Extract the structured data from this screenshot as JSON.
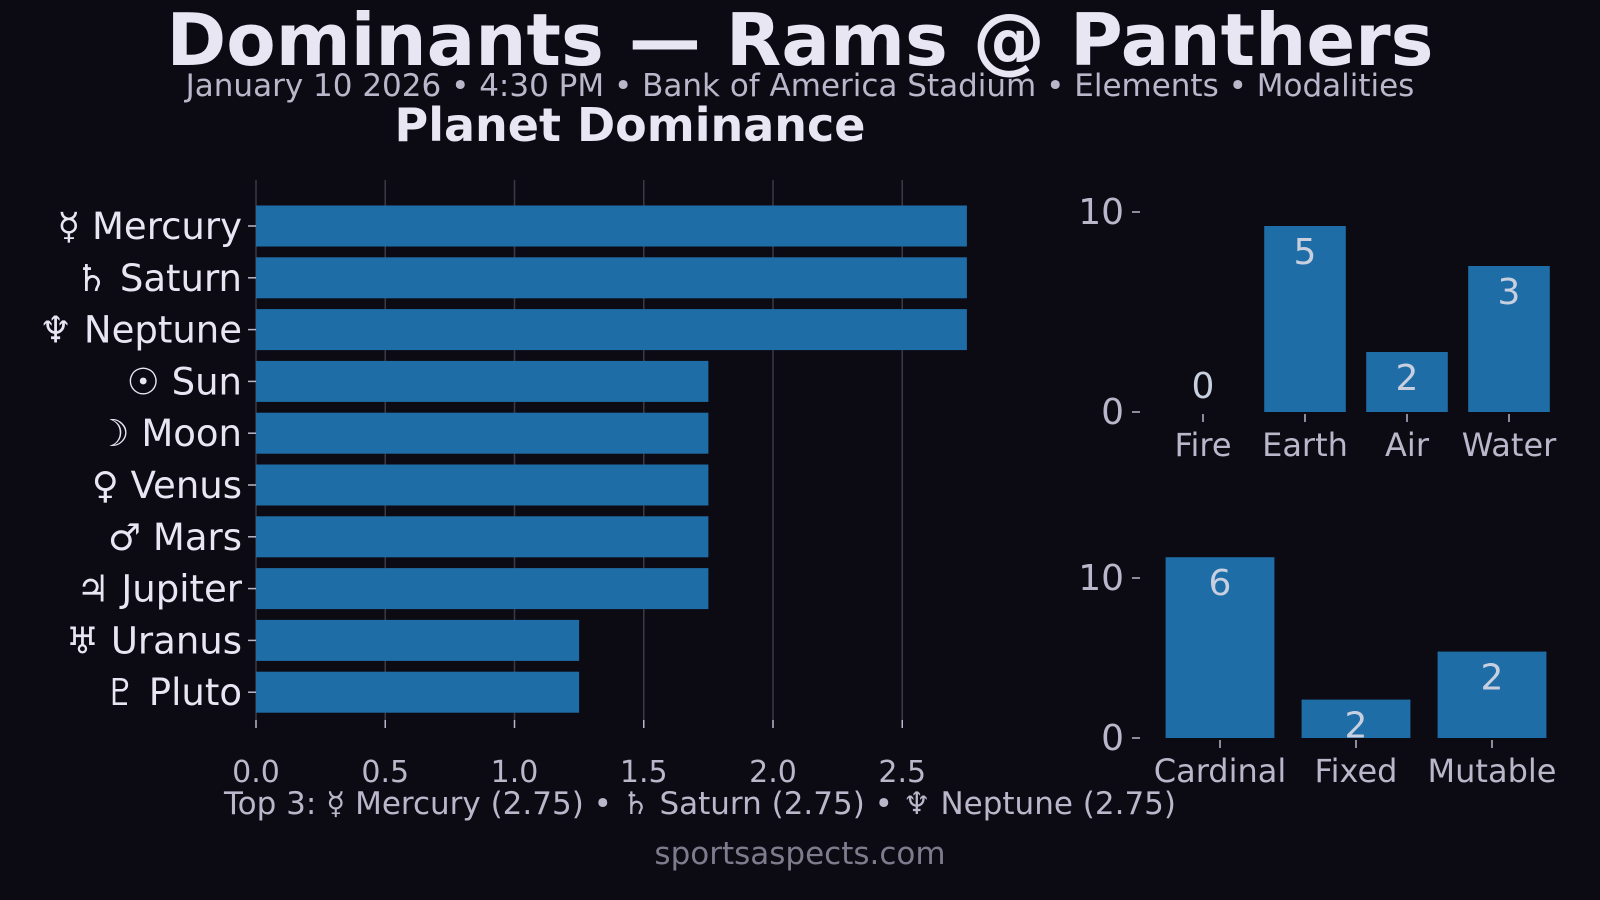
{
  "header": {
    "title": "Dominants — Rams @ Panthers",
    "subtitle": "January 10 2026 • 4:30 PM • Bank of America Stadium • Elements • Modalities"
  },
  "footer": {
    "top3": "Top 3: ☿ Mercury (2.75) • ♄ Saturn (2.75) • ♆ Neptune (2.75)",
    "source": "sportsaspects.com"
  },
  "colors": {
    "background": "#0c0b14",
    "bar": "#1f6da6",
    "text": "#e8e6f3",
    "muted": "#b9b7c9",
    "value_label": "#c8d0e0"
  },
  "chart_data": [
    {
      "type": "bar",
      "orientation": "horizontal",
      "title": "Planet Dominance",
      "categories": [
        "☿ Mercury",
        "♄ Saturn",
        "♆ Neptune",
        "☉ Sun",
        "☽ Moon",
        "♀ Venus",
        "♂ Mars",
        "♃ Jupiter",
        "♅ Uranus",
        "♇ Pluto"
      ],
      "values": [
        2.75,
        2.75,
        2.75,
        1.75,
        1.75,
        1.75,
        1.75,
        1.75,
        1.25,
        1.25
      ],
      "xlim": [
        0,
        3.0
      ],
      "xticks": [
        "0.0",
        "0.5",
        "1.0",
        "1.5",
        "2.0",
        "2.5"
      ],
      "grid": "vertical"
    },
    {
      "type": "bar",
      "categories": [
        "Fire",
        "Earth",
        "Air",
        "Water"
      ],
      "values": [
        0,
        9.3,
        3.0,
        7.3
      ],
      "labels": [
        "0",
        "5",
        "2",
        "3"
      ],
      "ylim": [
        0,
        10.5
      ],
      "yticks": [
        "0",
        "10"
      ]
    },
    {
      "type": "bar",
      "categories": [
        "Cardinal",
        "Fixed",
        "Mutable"
      ],
      "values": [
        11.3,
        2.4,
        5.4
      ],
      "labels": [
        "6",
        "2",
        "2"
      ],
      "ylim": [
        0,
        11.5
      ],
      "yticks": [
        "0",
        "10"
      ]
    }
  ]
}
